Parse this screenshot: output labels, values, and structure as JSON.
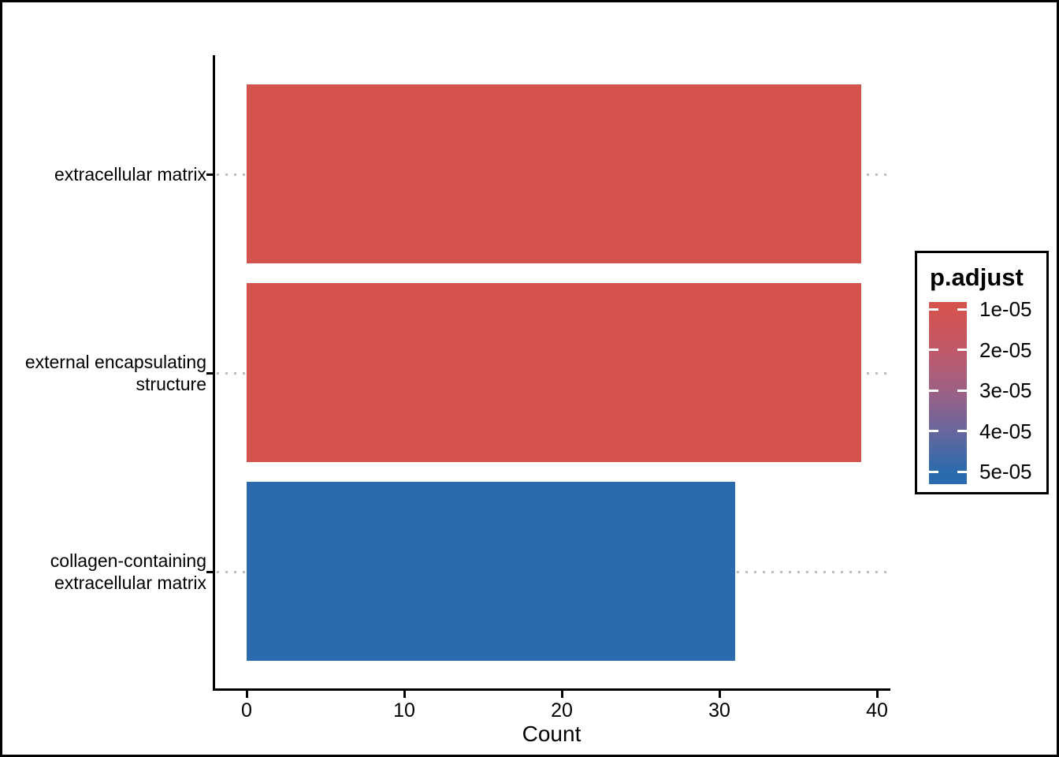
{
  "figure": {
    "background": "#FFFFFF",
    "border_color": "#000000"
  },
  "chart_data": {
    "type": "bar",
    "orientation": "horizontal",
    "title": "",
    "xlabel": "Count",
    "ylabel": "",
    "categories": [
      "extracellular matrix",
      "external encapsulating structure",
      "collagen-containing extracellular matrix"
    ],
    "category_display_lines": [
      [
        "extracellular matrix"
      ],
      [
        "external encapsulating",
        "structure"
      ],
      [
        "collagen-containing",
        "extracellular matrix"
      ]
    ],
    "values": [
      39,
      39,
      31
    ],
    "bar_colors": [
      "#D5534F",
      "#D5534F",
      "#2B6BAD"
    ],
    "xlim": [
      0,
      40
    ],
    "x_ticks": [
      "0",
      "10",
      "20",
      "30",
      "40"
    ],
    "x_tick_values": [
      0,
      10,
      20,
      30,
      40
    ],
    "grid": "dotted horizontal guide per category, behind bars",
    "gridline_color": "#BDBDBD",
    "axis_color": "#000000",
    "text_color": "#000000",
    "legend": {
      "title": "p.adjust",
      "position": "right",
      "type": "continuous-colorbar",
      "tick_labels": [
        "1e-05",
        "2e-05",
        "3e-05",
        "4e-05",
        "5e-05"
      ],
      "gradient_stops": [
        "#D5534F",
        "#C15868",
        "#9E6084",
        "#68669D",
        "#2B6BAD"
      ],
      "tick_mark_color": "#FFFFFF"
    }
  }
}
